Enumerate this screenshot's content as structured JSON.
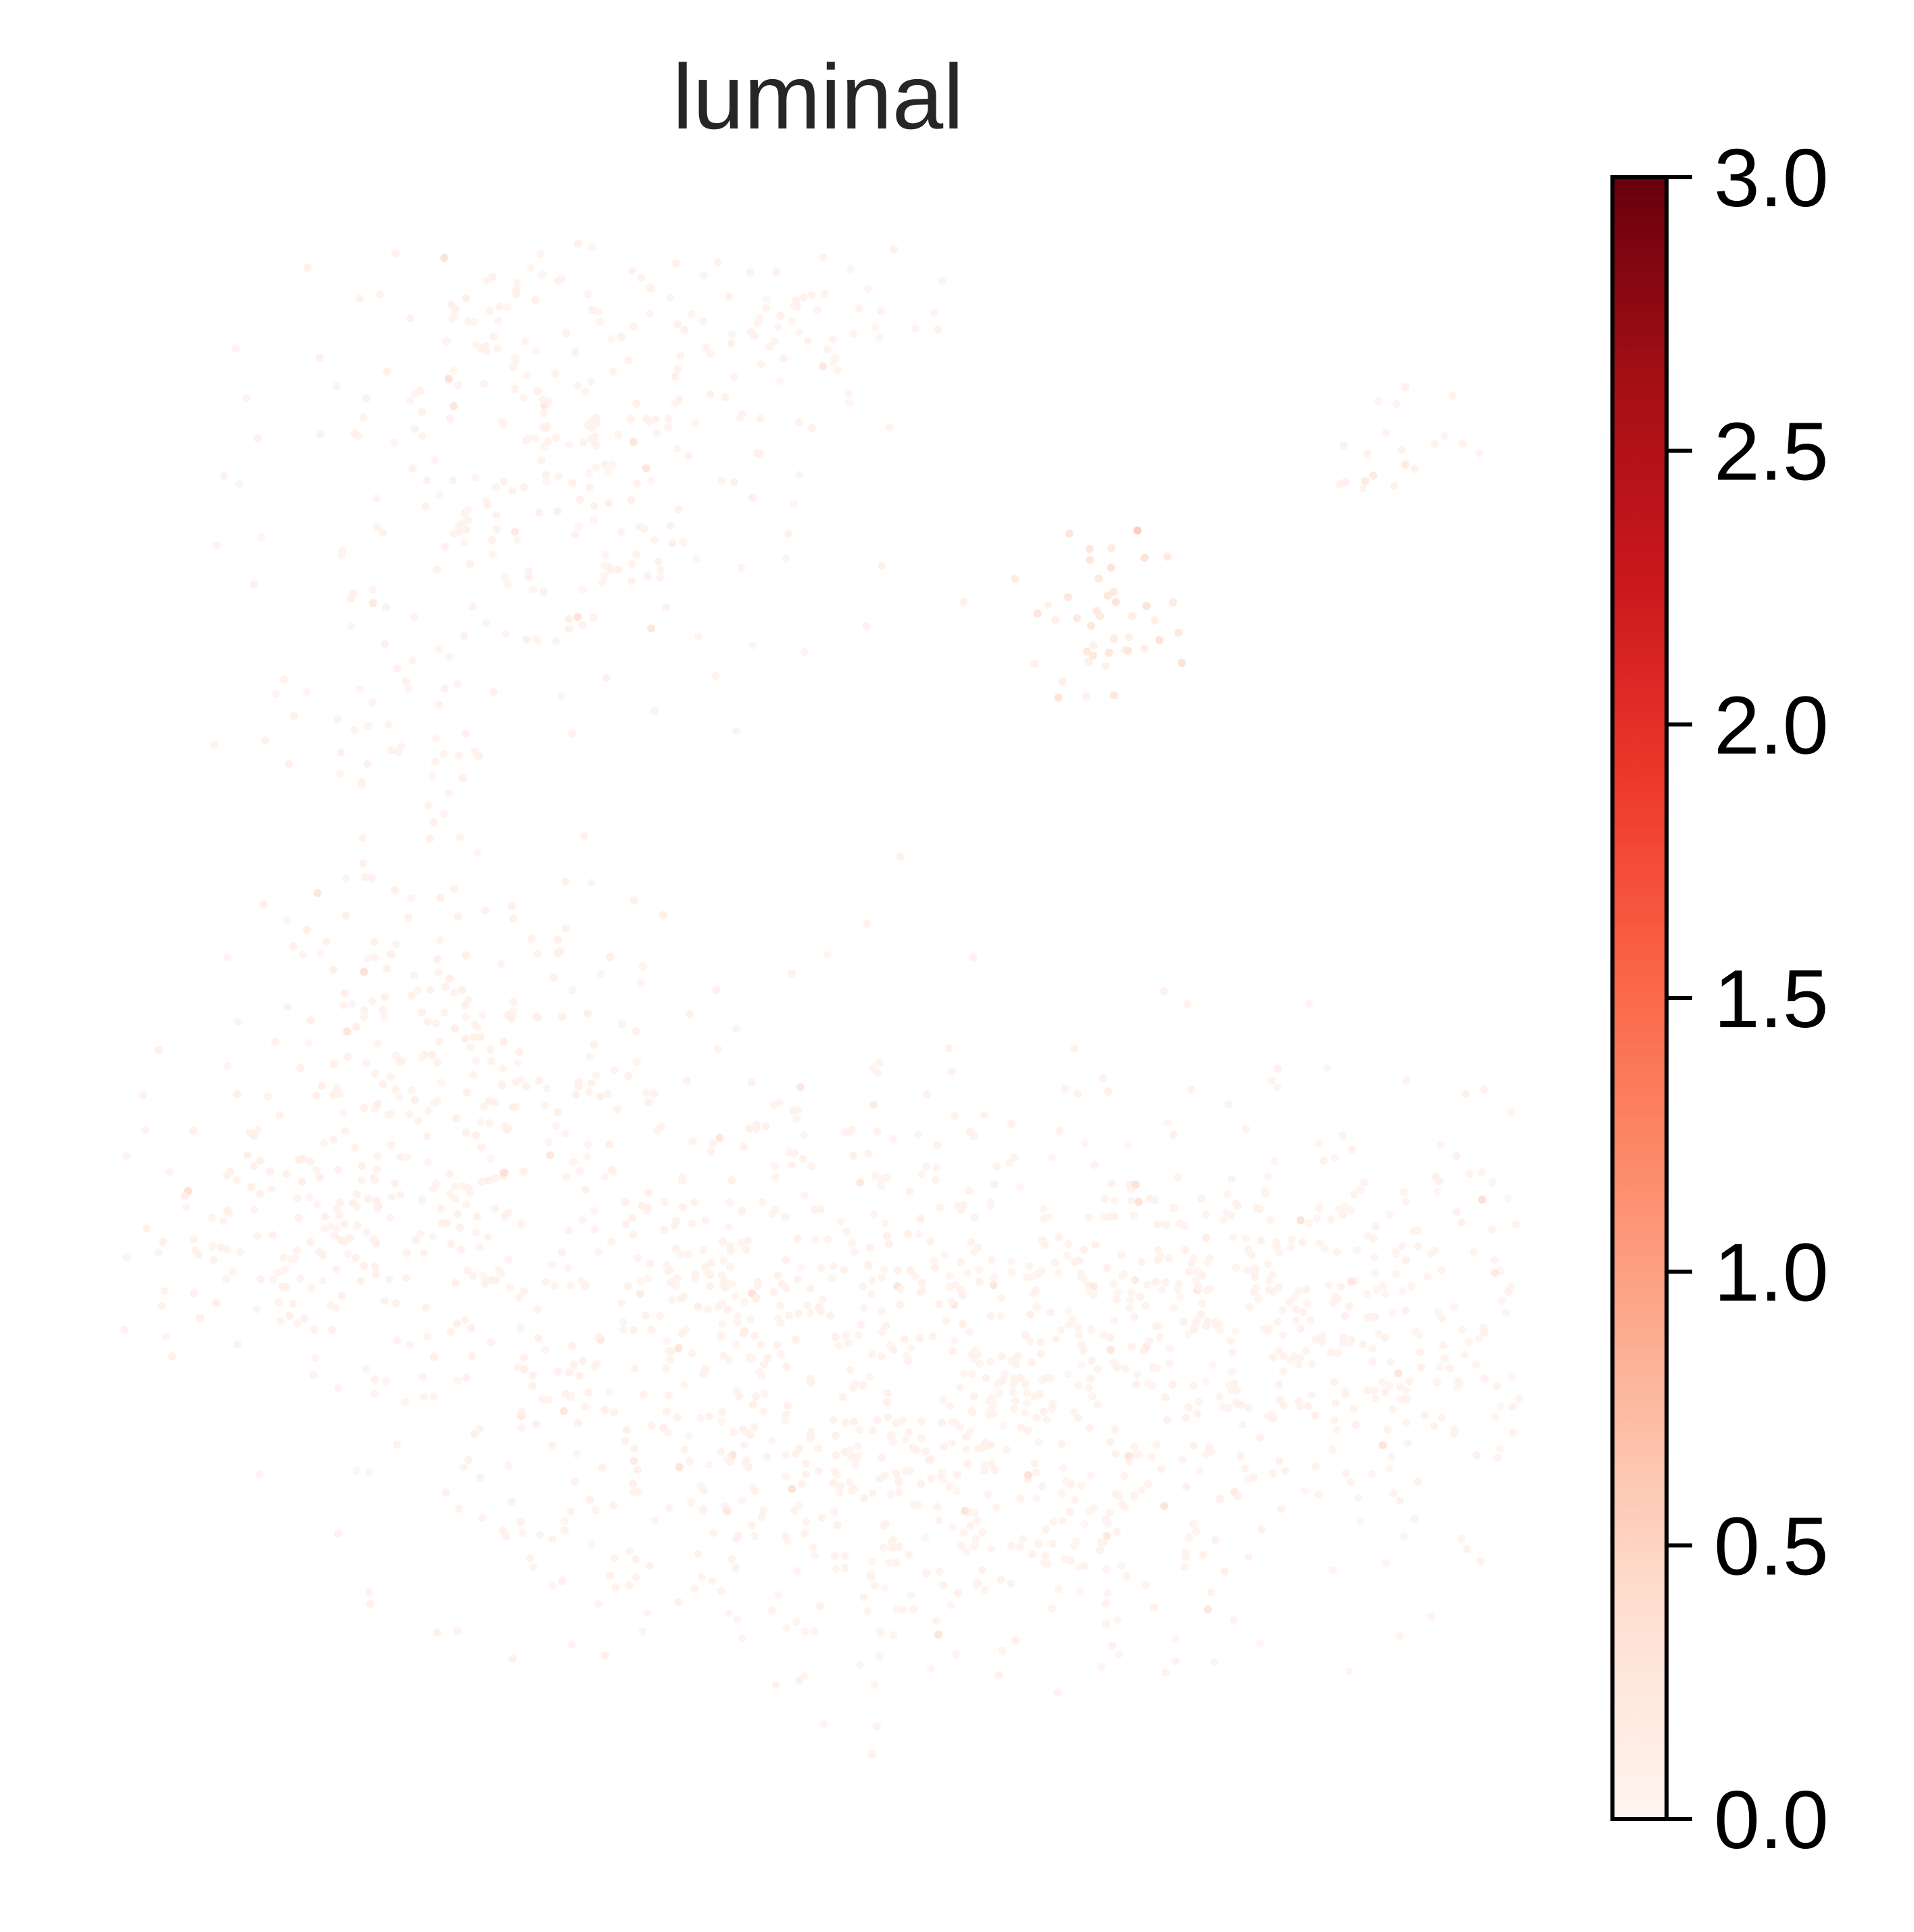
{
  "chart_data": {
    "type": "scatter",
    "title": "luminal",
    "xlabel": "",
    "ylabel": "",
    "axes_visible": false,
    "grid": false,
    "colormap": "Reds",
    "colormap_stops": [
      "#fff5f0",
      "#fee0d2",
      "#fcbba1",
      "#fc9272",
      "#fb6a4a",
      "#ef3b2c",
      "#cb181d",
      "#a50f15",
      "#67000d"
    ],
    "colorbar": {
      "placement": "right",
      "range": [
        0.0,
        3.0
      ],
      "ticks": [
        0.0,
        0.5,
        1.0,
        1.5,
        2.0,
        2.5,
        3.0
      ],
      "tick_labels": [
        "0.0",
        "0.5",
        "1.0",
        "1.5",
        "2.0",
        "2.5",
        "3.0"
      ]
    },
    "clusters": [
      {
        "name": "",
        "cx": 0.3,
        "cy": 0.87,
        "sx": 0.09,
        "sy": 0.08,
        "n": 300,
        "mean_value": 0.06
      },
      {
        "name": "",
        "cx": 0.5,
        "cy": 0.95,
        "sx": 0.05,
        "sy": 0.03,
        "n": 60,
        "mean_value": 0.05
      },
      {
        "name": "",
        "cx": 0.7,
        "cy": 0.76,
        "sx": 0.03,
        "sy": 0.03,
        "n": 45,
        "mean_value": 0.22
      },
      {
        "name": "",
        "cx": 0.92,
        "cy": 0.87,
        "sx": 0.03,
        "sy": 0.02,
        "n": 20,
        "mean_value": 0.05
      },
      {
        "name": "",
        "cx": 0.2,
        "cy": 0.68,
        "sx": 0.05,
        "sy": 0.03,
        "n": 40,
        "mean_value": 0.05
      },
      {
        "name": "",
        "cx": 0.22,
        "cy": 0.48,
        "sx": 0.07,
        "sy": 0.06,
        "n": 200,
        "mean_value": 0.08
      },
      {
        "name": "",
        "cx": 0.12,
        "cy": 0.36,
        "sx": 0.06,
        "sy": 0.04,
        "n": 150,
        "mean_value": 0.07
      },
      {
        "name": "",
        "cx": 0.45,
        "cy": 0.3,
        "sx": 0.16,
        "sy": 0.09,
        "n": 700,
        "mean_value": 0.06
      },
      {
        "name": "",
        "cx": 0.82,
        "cy": 0.3,
        "sx": 0.14,
        "sy": 0.07,
        "n": 550,
        "mean_value": 0.05
      },
      {
        "name": "",
        "cx": 0.6,
        "cy": 0.17,
        "sx": 0.12,
        "sy": 0.05,
        "n": 250,
        "mean_value": 0.05
      }
    ]
  }
}
